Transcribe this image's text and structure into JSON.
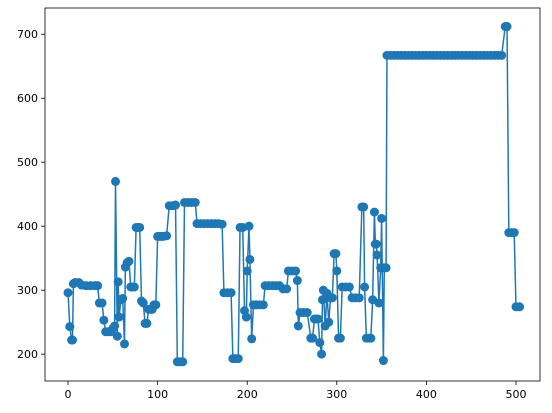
{
  "chart_data": {
    "type": "line",
    "color": "#1f77b4",
    "marker": true,
    "x": [
      0,
      2,
      4,
      5,
      6,
      8,
      12,
      15,
      20,
      25,
      30,
      33,
      35,
      38,
      40,
      42,
      45,
      48,
      50,
      52,
      53,
      55,
      56,
      57,
      59,
      61,
      63,
      64,
      66,
      68,
      70,
      72,
      74,
      76,
      78,
      80,
      82,
      84,
      86,
      88,
      90,
      92,
      94,
      96,
      98,
      100,
      103,
      106,
      110,
      113,
      117,
      120,
      122,
      125,
      128,
      130,
      134,
      138,
      142,
      144,
      148,
      152,
      156,
      160,
      164,
      168,
      172,
      174,
      178,
      182,
      184,
      187,
      190,
      192,
      195,
      197,
      199,
      200,
      202,
      203,
      205,
      207,
      210,
      214,
      218,
      220,
      224,
      228,
      232,
      236,
      240,
      244,
      246,
      250,
      254,
      256,
      257,
      259,
      263,
      267,
      271,
      273,
      275,
      277,
      279,
      281,
      283,
      284,
      285,
      287,
      289,
      291,
      293,
      295,
      297,
      299,
      300,
      302,
      304,
      306,
      310,
      314,
      317,
      321,
      325,
      328,
      330,
      331,
      333,
      336,
      338,
      340,
      342,
      343,
      344,
      345,
      347,
      349,
      350,
      352,
      353,
      355,
      356,
      360,
      364,
      368,
      372,
      376,
      380,
      384,
      388,
      392,
      396,
      400,
      404,
      408,
      412,
      416,
      420,
      424,
      428,
      432,
      436,
      440,
      444,
      448,
      452,
      456,
      460,
      464,
      468,
      472,
      476,
      480,
      484,
      488,
      490,
      492,
      495,
      498,
      500,
      504
    ],
    "values": [
      296,
      243,
      222,
      222,
      310,
      312,
      312,
      308,
      307,
      307,
      307,
      307,
      280,
      280,
      253,
      235,
      235,
      235,
      240,
      244,
      470,
      228,
      313,
      258,
      285,
      287,
      216,
      336,
      343,
      345,
      305,
      305,
      305,
      398,
      398,
      398,
      283,
      280,
      248,
      248,
      270,
      270,
      270,
      277,
      277,
      384,
      384,
      384,
      385,
      432,
      432,
      433,
      188,
      188,
      188,
      437,
      437,
      437,
      437,
      404,
      404,
      404,
      404,
      404,
      404,
      404,
      403,
      296,
      296,
      296,
      193,
      193,
      193,
      398,
      398,
      268,
      258,
      330,
      400,
      348,
      224,
      277,
      277,
      277,
      277,
      307,
      307,
      307,
      307,
      307,
      302,
      302,
      330,
      330,
      330,
      315,
      244,
      265,
      265,
      265,
      225,
      225,
      255,
      255,
      255,
      218,
      200,
      285,
      300,
      244,
      295,
      250,
      288,
      288,
      357,
      357,
      330,
      225,
      225,
      305,
      305,
      305,
      288,
      288,
      288,
      430,
      430,
      305,
      225,
      225,
      225,
      285,
      422,
      372,
      372,
      355,
      280,
      335,
      412,
      190,
      335,
      335,
      667,
      667,
      667,
      667,
      667,
      667,
      667,
      667,
      667,
      667,
      667,
      667,
      667,
      667,
      667,
      667,
      667,
      667,
      667,
      667,
      667,
      667,
      667,
      667,
      667,
      667,
      667,
      667,
      667,
      667,
      667,
      667,
      667,
      712,
      712,
      390,
      390,
      390,
      274,
      274
    ],
    "xlim": [
      -25.7,
      526.8
    ],
    "ylim": [
      158,
      741
    ],
    "xticks": [
      0,
      100,
      200,
      300,
      400,
      500
    ],
    "yticks": [
      200,
      300,
      400,
      500,
      600,
      700
    ],
    "grid": false
  }
}
